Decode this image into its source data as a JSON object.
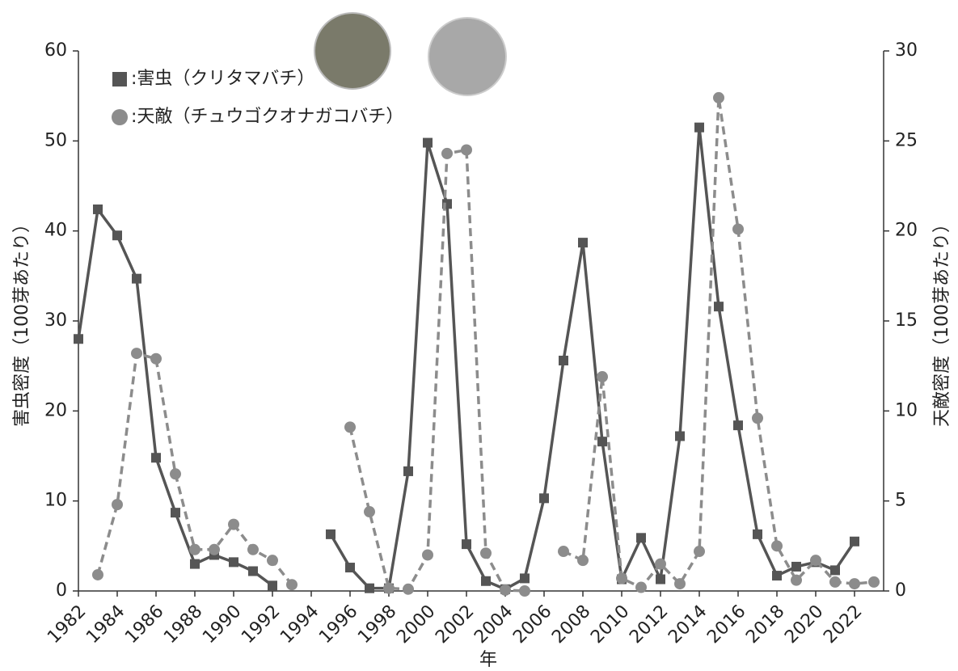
{
  "chart_data": {
    "type": "line",
    "x_label": "年",
    "y_label": "害虫密度（100芽あたり）",
    "y2_label": "天敵密度（100芽あたり）",
    "x": [
      1982,
      1983,
      1984,
      1985,
      1986,
      1987,
      1988,
      1989,
      1990,
      1991,
      1992,
      1993,
      1994,
      1995,
      1996,
      1997,
      1998,
      1999,
      2000,
      2001,
      2002,
      2003,
      2004,
      2005,
      2006,
      2007,
      2008,
      2009,
      2010,
      2011,
      2012,
      2013,
      2014,
      2015,
      2016,
      2017,
      2018,
      2019,
      2020,
      2021,
      2022,
      2023
    ],
    "xlim": [
      1982,
      2023.5
    ],
    "xticks": [
      1982,
      1984,
      1986,
      1988,
      1990,
      1992,
      1994,
      1996,
      1998,
      2000,
      2002,
      2004,
      2006,
      2008,
      2010,
      2012,
      2014,
      2016,
      2018,
      2020,
      2022
    ],
    "ylim": [
      0,
      60
    ],
    "yticks": [
      0,
      10,
      20,
      30,
      40,
      50,
      60
    ],
    "y2lim": [
      0,
      30
    ],
    "y2ticks": [
      0,
      5,
      10,
      15,
      20,
      25,
      30
    ],
    "series": [
      {
        "name": ":害虫（クリタマバチ）",
        "color": "#555555",
        "marker": "square",
        "dashed": false,
        "values": [
          28,
          42.4,
          39.5,
          34.7,
          14.8,
          8.7,
          3.0,
          4.0,
          3.2,
          2.2,
          0.6,
          null,
          null,
          6.3,
          2.6,
          0.3,
          0.3,
          13.3,
          49.8,
          43,
          5.2,
          1.1,
          0.2,
          1.4,
          10.3,
          25.6,
          38.7,
          16.6,
          1.3,
          5.9,
          1.3,
          17.2,
          51.5,
          31.6,
          18.4,
          6.3,
          1.7,
          2.7,
          3.2,
          2.3,
          5.5,
          null
        ]
      },
      {
        "name": ":天敵（チュウゴクオナガコバチ）",
        "color": "#8c8c8c",
        "marker": "circle",
        "dashed": true,
        "axis": "y2",
        "values": [
          null,
          0.9,
          4.8,
          13.2,
          12.9,
          6.5,
          2.3,
          2.3,
          3.7,
          2.3,
          1.7,
          0.35,
          null,
          null,
          9.1,
          4.4,
          0.15,
          0.1,
          2.0,
          24.3,
          24.5,
          2.1,
          0.05,
          0,
          null,
          2.2,
          1.7,
          11.9,
          0.7,
          0.2,
          1.5,
          0.4,
          2.2,
          27.4,
          20.1,
          9.6,
          2.5,
          0.6,
          1.7,
          0.5,
          0.4,
          0.5
        ]
      }
    ]
  }
}
